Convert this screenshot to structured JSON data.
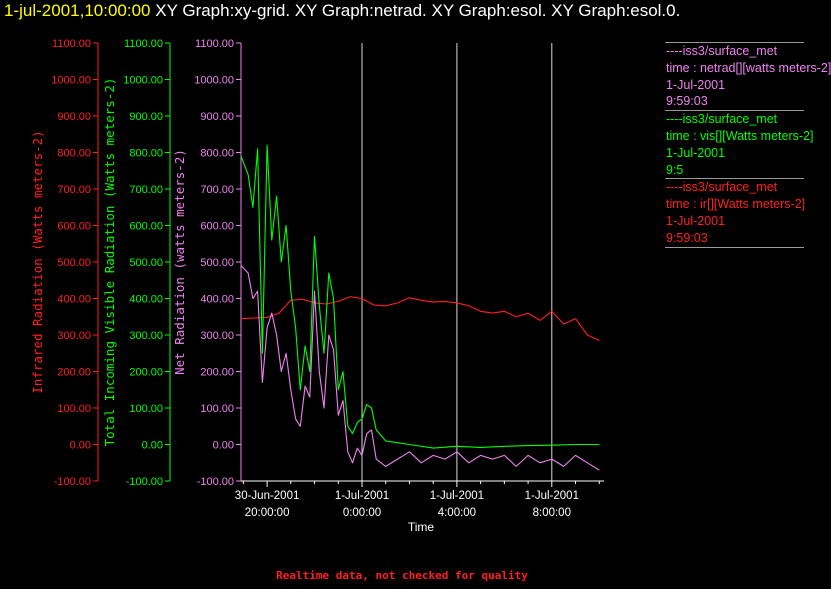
{
  "header": {
    "timestamp": "1-jul-2001,10:00:00",
    "graphs": "XY Graph:xy-grid.  XY Graph:netrad.  XY Graph:esol.  XY Graph:esol.0."
  },
  "footer_note": "Realtime data, not checked for quality",
  "legend": [
    {
      "source": "----iss3/surface_met",
      "variable": "time : netrad[][watts meters-2]",
      "date": "1-Jul-2001",
      "time": "9:59:03",
      "color": "#ee82ee"
    },
    {
      "source": "----iss3/surface_met",
      "variable": "time : vis[][Watts meters-2]",
      "date": "1-Jul-2001",
      "time": "9:5",
      "color": "#00ff00"
    },
    {
      "source": "----iss3/surface_met",
      "variable": "time : ir[][Watts meters-2]",
      "date": "1-Jul-2001",
      "time": "9:59:03",
      "color": "#ff2020"
    }
  ],
  "chart_data": {
    "type": "line",
    "xlabel": "Time",
    "x_ticks": [
      {
        "t": 0,
        "label": [
          "30-Jun-2001",
          "20:00:00"
        ]
      },
      {
        "t": 4,
        "label": [
          "1-Jul-2001",
          "0:00:00"
        ]
      },
      {
        "t": 8,
        "label": [
          "1-Jul-2001",
          "4:00:00"
        ]
      },
      {
        "t": 12,
        "label": [
          "1-Jul-2001",
          "8:00:00"
        ]
      }
    ],
    "xlim": [
      -1.1,
      14.2
    ],
    "x_units": "hours after 30-Jun-2001 19:00:00",
    "ylim": [
      -100,
      1100
    ],
    "y_ticks": [
      "-100.00",
      "0.00",
      "100.00",
      "200.00",
      "300.00",
      "400.00",
      "500.00",
      "600.00",
      "700.00",
      "800.00",
      "900.00",
      "1000.00",
      "1100.00"
    ],
    "vertical_gridlines_t": [
      4,
      8,
      12
    ],
    "axes": [
      {
        "label": "Infrared Radiation (Watts meters-2)",
        "color": "#ff2020"
      },
      {
        "label": "Total Incoming Visible Radiation (Watts meters-2)",
        "color": "#00ff00"
      },
      {
        "label": "Net Radiation (watts meters-2)",
        "color": "#ee82ee"
      }
    ],
    "series": [
      {
        "name": "ir",
        "color": "#ff2020",
        "x": [
          -1.1,
          0.0,
          0.5,
          1.0,
          1.5,
          2.0,
          2.5,
          3.0,
          3.5,
          4.0,
          4.5,
          5.0,
          5.5,
          6.0,
          6.5,
          7.0,
          7.5,
          8.0,
          8.5,
          9.0,
          9.5,
          10.0,
          10.5,
          11.0,
          11.5,
          12.0,
          12.5,
          13.0,
          13.5,
          14.0
        ],
        "y": [
          345,
          348,
          360,
          395,
          398,
          388,
          385,
          392,
          405,
          400,
          382,
          380,
          388,
          402,
          395,
          390,
          392,
          388,
          380,
          365,
          360,
          365,
          350,
          360,
          340,
          365,
          330,
          345,
          300,
          285
        ]
      },
      {
        "name": "vis",
        "color": "#00ff00",
        "x": [
          -1.1,
          -0.8,
          -0.6,
          -0.4,
          -0.2,
          0.0,
          0.2,
          0.4,
          0.6,
          0.8,
          1.0,
          1.2,
          1.4,
          1.6,
          1.8,
          2.0,
          2.2,
          2.4,
          2.6,
          2.8,
          3.0,
          3.2,
          3.4,
          3.6,
          3.8,
          4.0,
          4.2,
          4.4,
          4.6,
          5.0,
          6.0,
          7.0,
          8.0,
          9.0,
          10.0,
          11.0,
          12.0,
          13.0,
          14.0
        ],
        "y": [
          790,
          740,
          650,
          810,
          250,
          820,
          560,
          680,
          500,
          600,
          420,
          320,
          150,
          270,
          200,
          570,
          380,
          250,
          470,
          400,
          150,
          200,
          50,
          30,
          60,
          70,
          110,
          100,
          40,
          10,
          0,
          -10,
          -5,
          -8,
          -5,
          -3,
          -2,
          0,
          0
        ]
      },
      {
        "name": "netrad",
        "color": "#ee82ee",
        "x": [
          -1.1,
          -0.8,
          -0.6,
          -0.4,
          -0.2,
          0.0,
          0.2,
          0.4,
          0.6,
          0.8,
          1.0,
          1.2,
          1.4,
          1.6,
          1.8,
          2.0,
          2.2,
          2.4,
          2.6,
          2.8,
          3.0,
          3.2,
          3.4,
          3.6,
          3.8,
          4.0,
          4.2,
          4.4,
          4.6,
          4.8,
          5.0,
          5.5,
          6.0,
          6.5,
          7.0,
          7.5,
          8.0,
          8.5,
          9.0,
          9.5,
          10.0,
          10.5,
          11.0,
          11.5,
          12.0,
          12.5,
          13.0,
          13.5,
          14.0
        ],
        "y": [
          490,
          470,
          400,
          420,
          170,
          320,
          360,
          300,
          200,
          250,
          150,
          70,
          50,
          160,
          130,
          420,
          200,
          100,
          300,
          260,
          80,
          120,
          -20,
          -50,
          -10,
          -30,
          30,
          40,
          -40,
          -50,
          -60,
          -40,
          -20,
          -50,
          -30,
          -40,
          -20,
          -50,
          -30,
          -40,
          -30,
          -60,
          -30,
          -50,
          -40,
          -60,
          -30,
          -50,
          -70
        ]
      }
    ]
  }
}
